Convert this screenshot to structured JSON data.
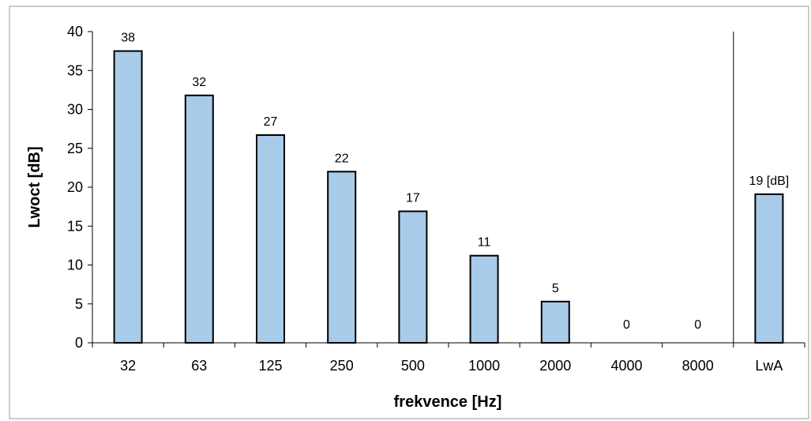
{
  "chart_data": {
    "type": "bar",
    "categories": [
      "32",
      "63",
      "125",
      "250",
      "500",
      "1000",
      "2000",
      "4000",
      "8000",
      "LwA"
    ],
    "values": [
      37.5,
      31.8,
      26.7,
      22.0,
      16.9,
      11.2,
      5.3,
      0,
      0,
      19.1
    ],
    "data_labels": [
      "38",
      "32",
      "27",
      "22",
      "17",
      "11",
      "5",
      "0",
      "0",
      "19 [dB]"
    ],
    "xlabel": "frekvence [Hz]",
    "ylabel": "Lwoct [dB]",
    "ylim": [
      0,
      40
    ],
    "yticks": [
      0,
      5,
      10,
      15,
      20,
      25,
      30,
      35,
      40
    ],
    "grid": false,
    "legend": "none",
    "separator_before_category": "LwA",
    "colors": {
      "bar_fill": "#a8cbea",
      "bar_stroke": "#000000",
      "axis": "#000000",
      "frame": "#9a9a9a"
    }
  }
}
